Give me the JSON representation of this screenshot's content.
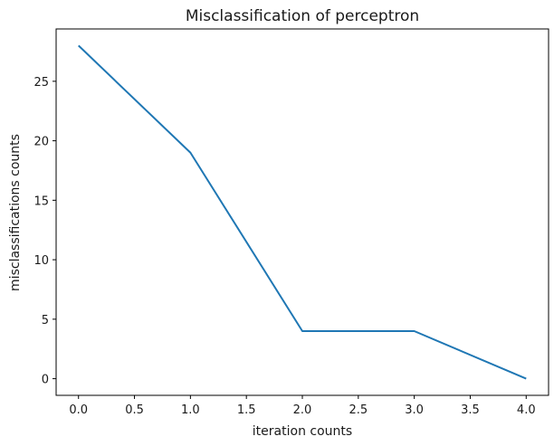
{
  "chart_data": {
    "type": "line",
    "title": "Misclassification of perceptron",
    "xlabel": "iteration counts",
    "ylabel": "misclassifications counts",
    "x": [
      0,
      1,
      2,
      3,
      4
    ],
    "series": [
      {
        "name": "misclassifications",
        "values": [
          28,
          19,
          4,
          4,
          0
        ],
        "color": "#1f77b4"
      }
    ],
    "xlim": [
      -0.2,
      4.2
    ],
    "ylim": [
      -1.4,
      29.4
    ],
    "xticks": [
      0.0,
      0.5,
      1.0,
      1.5,
      2.0,
      2.5,
      3.0,
      3.5,
      4.0
    ],
    "xtick_labels": [
      "0.0",
      "0.5",
      "1.0",
      "1.5",
      "2.0",
      "2.5",
      "3.0",
      "3.5",
      "4.0"
    ],
    "yticks": [
      0,
      5,
      10,
      15,
      20,
      25
    ],
    "ytick_labels": [
      "0",
      "5",
      "10",
      "15",
      "20",
      "25"
    ],
    "grid": false,
    "legend": "none"
  }
}
